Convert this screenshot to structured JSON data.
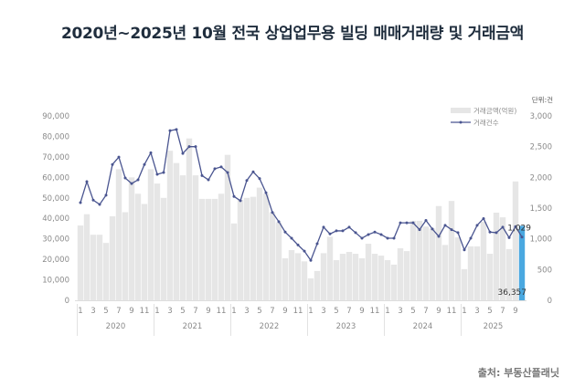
{
  "page": {
    "title": "2020년~2025년 10월 전국 상업업무용 빌딩 매매거래량 및 거래금액",
    "source": "출처: 부동산플래닛",
    "unit_label": "단위:건"
  },
  "colors": {
    "bar": "#e6e6e6",
    "bar_highlight": "#4aa8e0",
    "line": "#4a5590",
    "axis_text": "#8a8a8a"
  },
  "chart_data": {
    "type": "bar+line",
    "title": "2020년~2025년 10월 전국 상업업무용 빌딩 매매거래량 및 거래금액",
    "legend": [
      "거래금액(억원)",
      "거래건수"
    ],
    "legend_position": "top-right",
    "left_axis": {
      "label": "거래금액(억원)",
      "ylim": [
        0,
        90000
      ],
      "ticks": [
        "0",
        "10,000",
        "20,000",
        "30,000",
        "40,000",
        "50,000",
        "60,000",
        "70,000",
        "80,000",
        "90,000"
      ]
    },
    "right_axis": {
      "label": "단위:건",
      "ylim": [
        0,
        3000
      ],
      "ticks": [
        "0",
        "500",
        "1,000",
        "1,500",
        "2,000",
        "2,500",
        "3,000"
      ]
    },
    "years": [
      "2020",
      "2021",
      "2022",
      "2023",
      "2024",
      "2025"
    ],
    "month_ticks": [
      "1",
      "3",
      "5",
      "7",
      "9",
      "11"
    ],
    "month_ticks_2025": [
      "1",
      "3",
      "5",
      "7",
      "9"
    ],
    "annotations": {
      "last_amount": "36,357",
      "last_count": "1,029"
    },
    "grid": false,
    "series": [
      {
        "name": "거래금액(억원)",
        "type": "bar",
        "axis": "left",
        "values": [
          36500,
          42000,
          32000,
          32000,
          28000,
          41000,
          64000,
          43000,
          60000,
          52000,
          47000,
          64000,
          57000,
          50000,
          73000,
          67000,
          61000,
          79000,
          61000,
          49500,
          49500,
          49500,
          52000,
          71000,
          37500,
          49000,
          50000,
          50500,
          55000,
          52000,
          43000,
          38000,
          20500,
          24500,
          23000,
          19000,
          10700,
          14300,
          23000,
          31000,
          19600,
          22700,
          23600,
          22700,
          20500,
          27600,
          22700,
          21800,
          19600,
          17400,
          25400,
          24000,
          38800,
          38800,
          36000,
          35000,
          46000,
          27000,
          48500,
          30700,
          15200,
          26300,
          26300,
          38300,
          22700,
          42800,
          40500,
          25000,
          58000,
          36357
        ]
      },
      {
        "name": "거래건수",
        "type": "line",
        "axis": "right",
        "values": [
          1590,
          1930,
          1630,
          1560,
          1710,
          2210,
          2330,
          1990,
          1900,
          1960,
          2210,
          2400,
          2050,
          2080,
          2760,
          2780,
          2390,
          2500,
          2500,
          2030,
          1960,
          2140,
          2170,
          2080,
          1690,
          1620,
          1950,
          2090,
          1980,
          1750,
          1430,
          1280,
          1110,
          1010,
          900,
          800,
          650,
          920,
          1190,
          1080,
          1130,
          1130,
          1190,
          1100,
          1010,
          1070,
          1110,
          1070,
          1010,
          1010,
          1260,
          1260,
          1260,
          1150,
          1300,
          1160,
          1040,
          1220,
          1150,
          1100,
          820,
          1010,
          1220,
          1330,
          1110,
          1100,
          1190,
          1020,
          1200,
          1029
        ]
      }
    ]
  }
}
